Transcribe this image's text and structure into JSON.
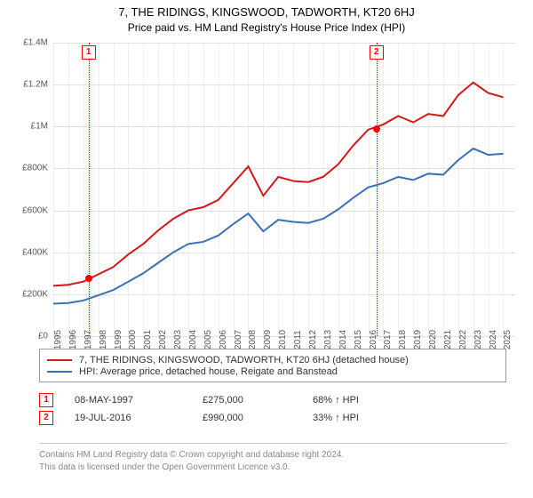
{
  "title": "7, THE RIDINGS, KINGSWOOD, TADWORTH, KT20 6HJ",
  "subtitle": "Price paid vs. HM Land Registry's House Price Index (HPI)",
  "chart": {
    "type": "line",
    "background_color": "#ffffff",
    "grid_color": "#e0e0e0",
    "x_years": [
      1995,
      1996,
      1997,
      1998,
      1999,
      2000,
      2001,
      2002,
      2003,
      2004,
      2005,
      2006,
      2007,
      2008,
      2009,
      2010,
      2011,
      2012,
      2013,
      2014,
      2015,
      2016,
      2017,
      2018,
      2019,
      2020,
      2021,
      2022,
      2023,
      2024,
      2025
    ],
    "xlim": [
      1995,
      2025.8
    ],
    "ylim": [
      0,
      1400000
    ],
    "ytick_step": 200000,
    "ytick_labels": [
      "£0",
      "£200K",
      "£400K",
      "£600K",
      "£800K",
      "£1M",
      "£1.2M",
      "£1.4M"
    ],
    "label_fontsize": 10,
    "series": {
      "property": {
        "label": "7, THE RIDINGS, KINGSWOOD, TADWORTH, KT20 6HJ (detached house)",
        "color": "#d4161a",
        "line_width": 2,
        "values": [
          240000,
          245000,
          260000,
          295000,
          330000,
          390000,
          440000,
          505000,
          560000,
          600000,
          615000,
          650000,
          730000,
          810000,
          670000,
          760000,
          740000,
          735000,
          760000,
          820000,
          910000,
          985000,
          1010000,
          1050000,
          1020000,
          1060000,
          1050000,
          1150000,
          1210000,
          1160000,
          1140000
        ]
      },
      "hpi": {
        "label": "HPI: Average price, detached house, Reigate and Banstead",
        "color": "#3b6fb6",
        "line_width": 1.6,
        "values": [
          155000,
          158000,
          170000,
          195000,
          220000,
          260000,
          300000,
          350000,
          400000,
          440000,
          450000,
          480000,
          535000,
          585000,
          500000,
          555000,
          545000,
          540000,
          560000,
          605000,
          660000,
          710000,
          730000,
          760000,
          745000,
          775000,
          770000,
          840000,
          895000,
          865000,
          870000
        ]
      }
    },
    "sale_markers": [
      {
        "badge": "1",
        "year": 1997.35,
        "price": 275000
      },
      {
        "badge": "2",
        "year": 2016.55,
        "price": 990000
      }
    ],
    "sale_line_color": "#ff0000",
    "sale_line_style": "dotted"
  },
  "legend": {
    "rows": [
      {
        "color": "#d4161a",
        "text": "7, THE RIDINGS, KINGSWOOD, TADWORTH, KT20 6HJ (detached house)"
      },
      {
        "color": "#3b6fb6",
        "text": "HPI: Average price, detached house, Reigate and Banstead"
      }
    ]
  },
  "sales_table": {
    "rows": [
      {
        "badge": "1",
        "date": "08-MAY-1997",
        "price": "£275,000",
        "hpi": "68% ↑ HPI"
      },
      {
        "badge": "2",
        "date": "19-JUL-2016",
        "price": "£990,000",
        "hpi": "33% ↑ HPI"
      }
    ]
  },
  "footer": {
    "line1": "Contains HM Land Registry data © Crown copyright and database right 2024.",
    "line2": "This data is licensed under the Open Government Licence v3.0."
  }
}
